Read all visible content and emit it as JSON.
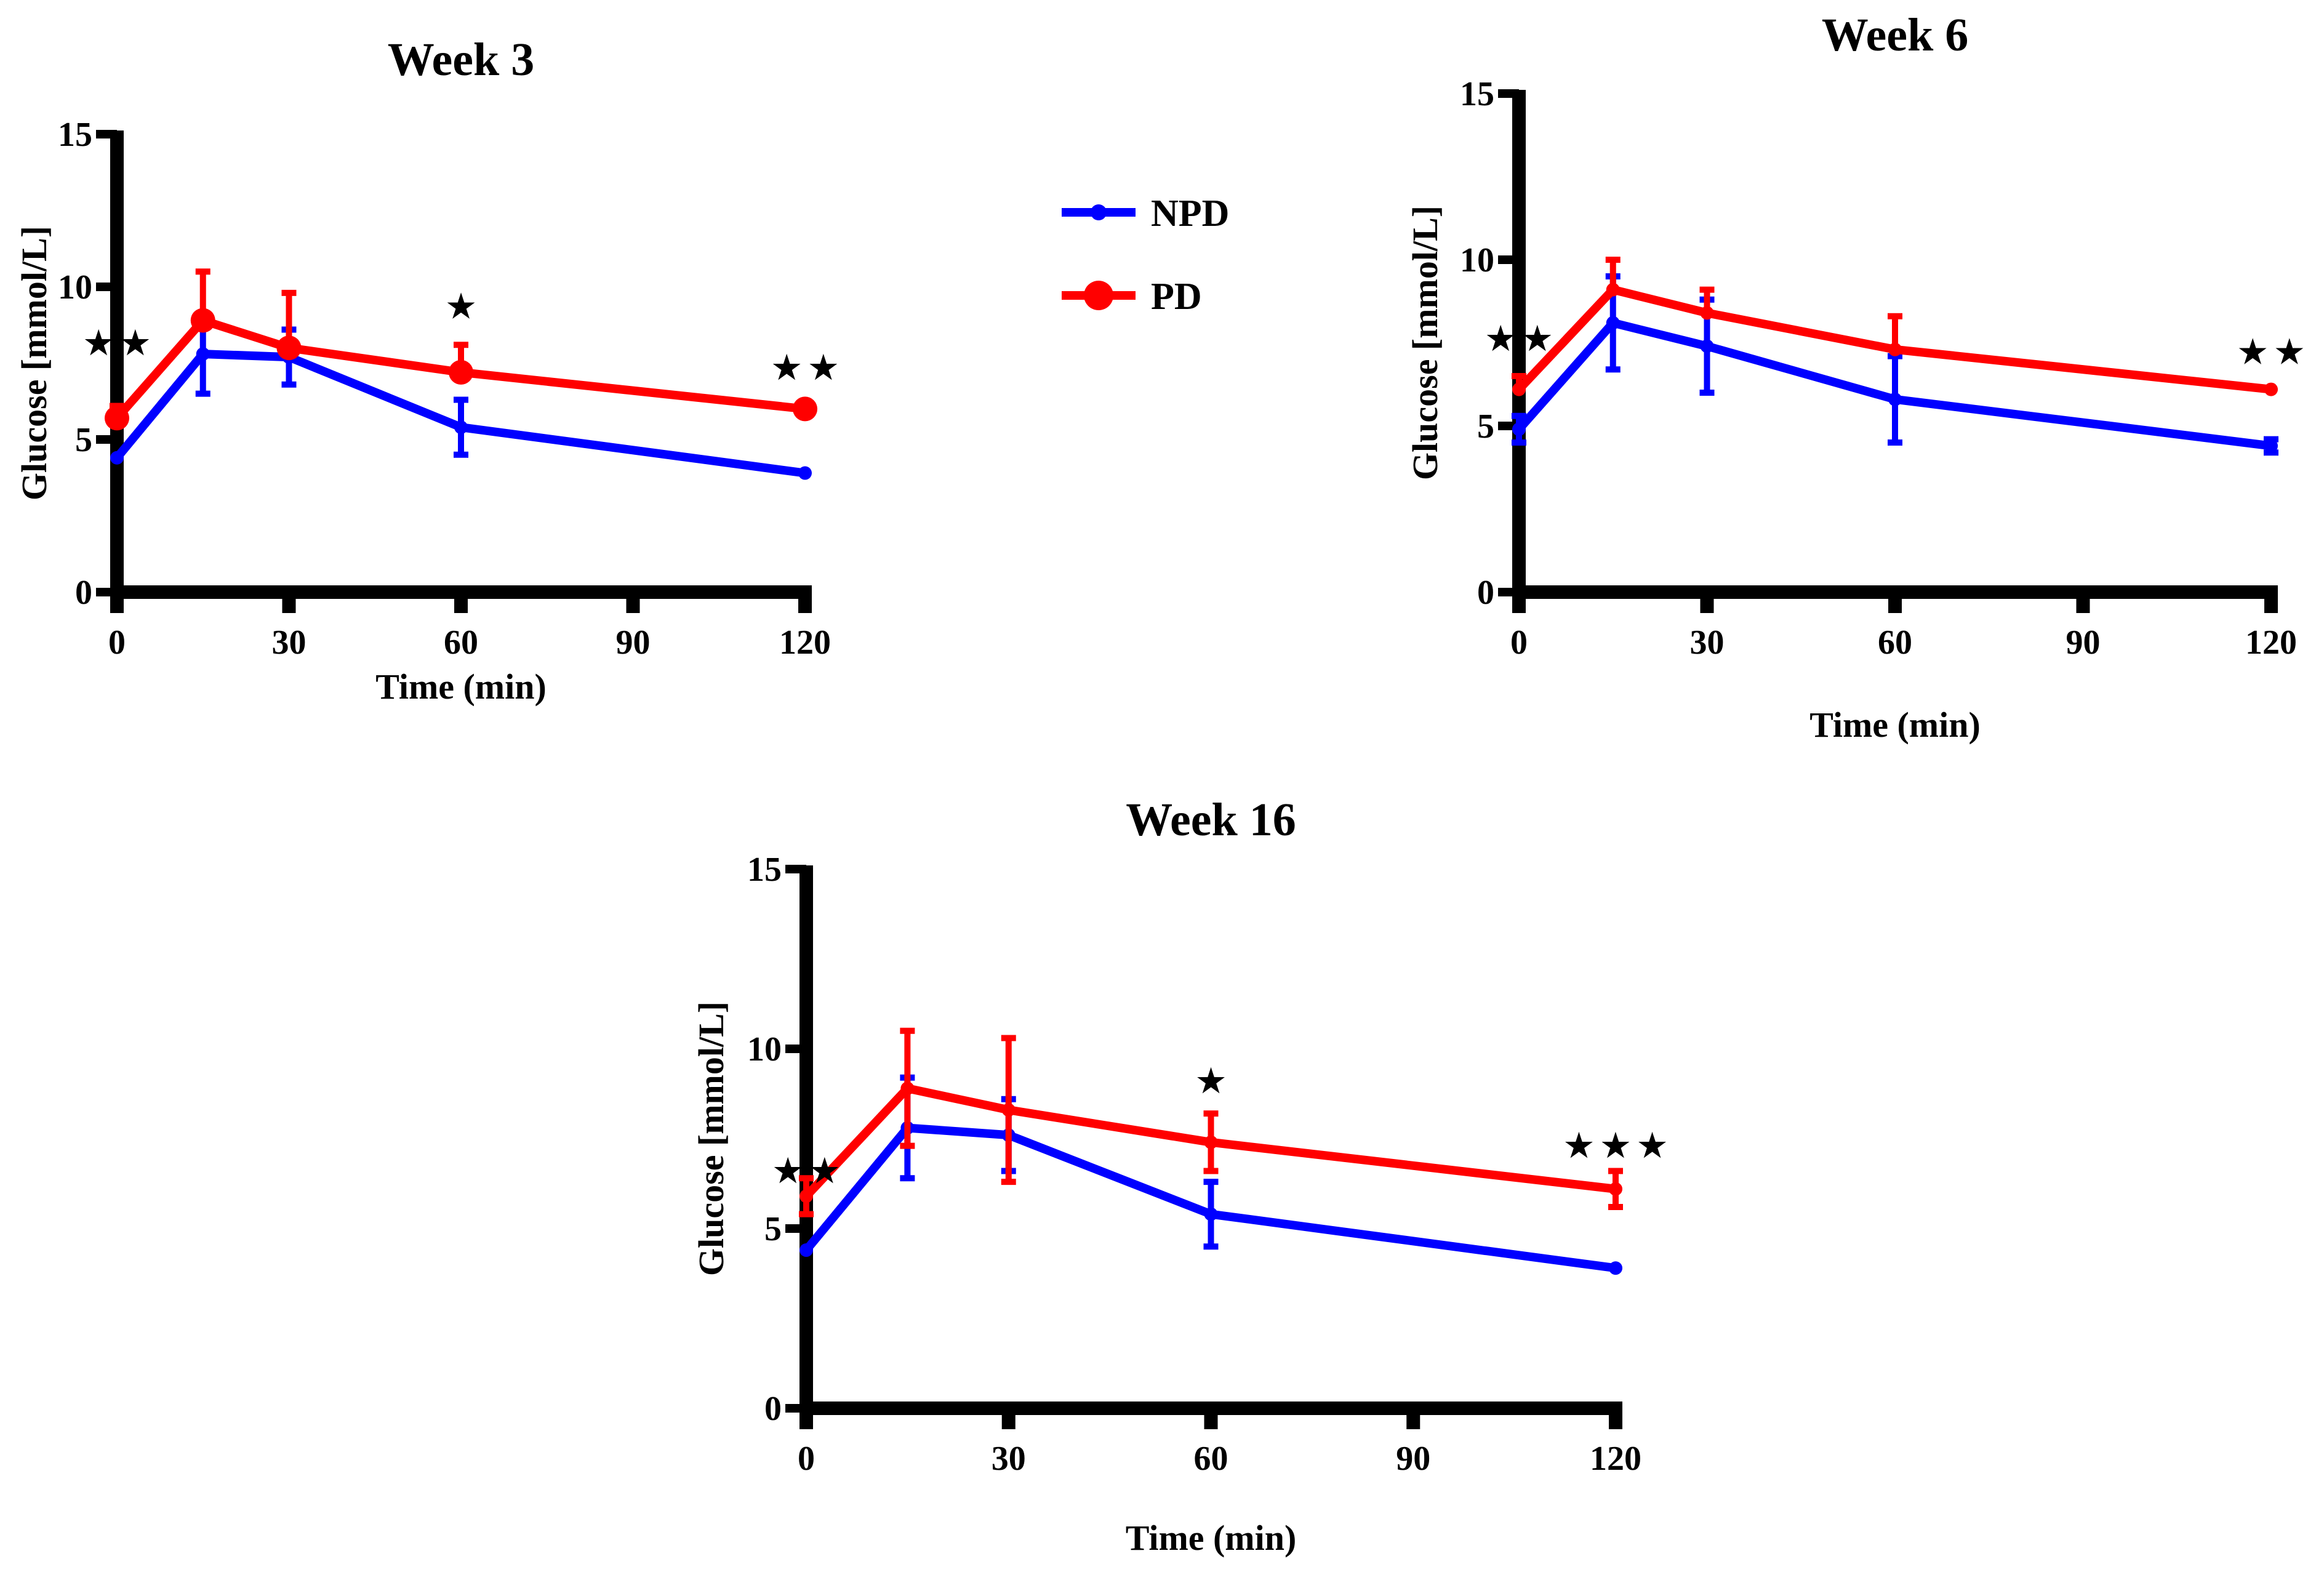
{
  "colors": {
    "npd": "#0000ff",
    "pd": "#ff0000",
    "axis": "#000000"
  },
  "legend": [
    {
      "name": "NPD",
      "color": "#0000ff"
    },
    {
      "name": "PD",
      "color": "#ff0000"
    }
  ],
  "chart_data": [
    {
      "type": "line",
      "title": "Week 3",
      "xlabel": "Time (min)",
      "ylabel": "Glucose [mmol/L]",
      "x": [
        0,
        15,
        30,
        60,
        120
      ],
      "xlim": [
        0,
        120
      ],
      "ylim": [
        0,
        15
      ],
      "xticks": [
        0,
        30,
        60,
        90,
        120
      ],
      "yticks": [
        0,
        5,
        10,
        15
      ],
      "series": [
        {
          "name": "NPD",
          "values": [
            4.4,
            7.8,
            7.7,
            5.4,
            3.9
          ],
          "errors": [
            0,
            1.3,
            0.9,
            0.9,
            0
          ]
        },
        {
          "name": "PD",
          "values": [
            5.7,
            8.9,
            8.0,
            7.2,
            6.0
          ],
          "errors": [
            0.4,
            1.6,
            1.8,
            0.9,
            0
          ]
        }
      ],
      "annotations": [
        {
          "x": 0,
          "y": 7.8,
          "text": "★ ★"
        },
        {
          "x": 60,
          "y": 9.0,
          "text": "★"
        },
        {
          "x": 120,
          "y": 7.0,
          "text": "★ ★"
        }
      ]
    },
    {
      "type": "line",
      "title": "Week 6",
      "xlabel": "Time (min)",
      "ylabel": "Glucose [mmol/L]",
      "x": [
        0,
        15,
        30,
        60,
        120
      ],
      "xlim": [
        0,
        120
      ],
      "ylim": [
        0,
        15
      ],
      "xticks": [
        0,
        30,
        60,
        90,
        120
      ],
      "yticks": [
        0,
        5,
        10,
        15
      ],
      "series": [
        {
          "name": "NPD",
          "values": [
            4.9,
            8.1,
            7.4,
            5.8,
            4.4
          ],
          "errors": [
            0.4,
            1.4,
            1.4,
            1.3,
            0.2
          ]
        },
        {
          "name": "PD",
          "values": [
            6.1,
            9.1,
            8.4,
            7.3,
            6.1
          ],
          "errors": [
            0.4,
            0.9,
            0.7,
            1.0,
            0
          ]
        }
      ],
      "annotations": [
        {
          "x": 0,
          "y": 7.3,
          "text": "★ ★"
        },
        {
          "x": 120,
          "y": 6.9,
          "text": "★ ★"
        }
      ]
    },
    {
      "type": "line",
      "title": "Week 16",
      "xlabel": "Time (min)",
      "ylabel": "Glucose [mmol/L]",
      "x": [
        0,
        15,
        30,
        60,
        120
      ],
      "xlim": [
        0,
        120
      ],
      "ylim": [
        0,
        15
      ],
      "xticks": [
        0,
        30,
        60,
        90,
        120
      ],
      "yticks": [
        0,
        5,
        10,
        15
      ],
      "series": [
        {
          "name": "NPD",
          "values": [
            4.4,
            7.8,
            7.6,
            5.4,
            3.9
          ],
          "errors": [
            0,
            1.4,
            1.0,
            0.9,
            0
          ]
        },
        {
          "name": "PD",
          "values": [
            5.9,
            8.9,
            8.3,
            7.4,
            6.1
          ],
          "errors": [
            0.5,
            1.6,
            2.0,
            0.8,
            0.5
          ]
        }
      ],
      "annotations": [
        {
          "x": 0,
          "y": 6.3,
          "text": "★ ★"
        },
        {
          "x": 120,
          "y": 7.0,
          "text": "★ ★ ★"
        },
        {
          "x": 60,
          "y": 8.8,
          "text": "★"
        }
      ]
    }
  ]
}
